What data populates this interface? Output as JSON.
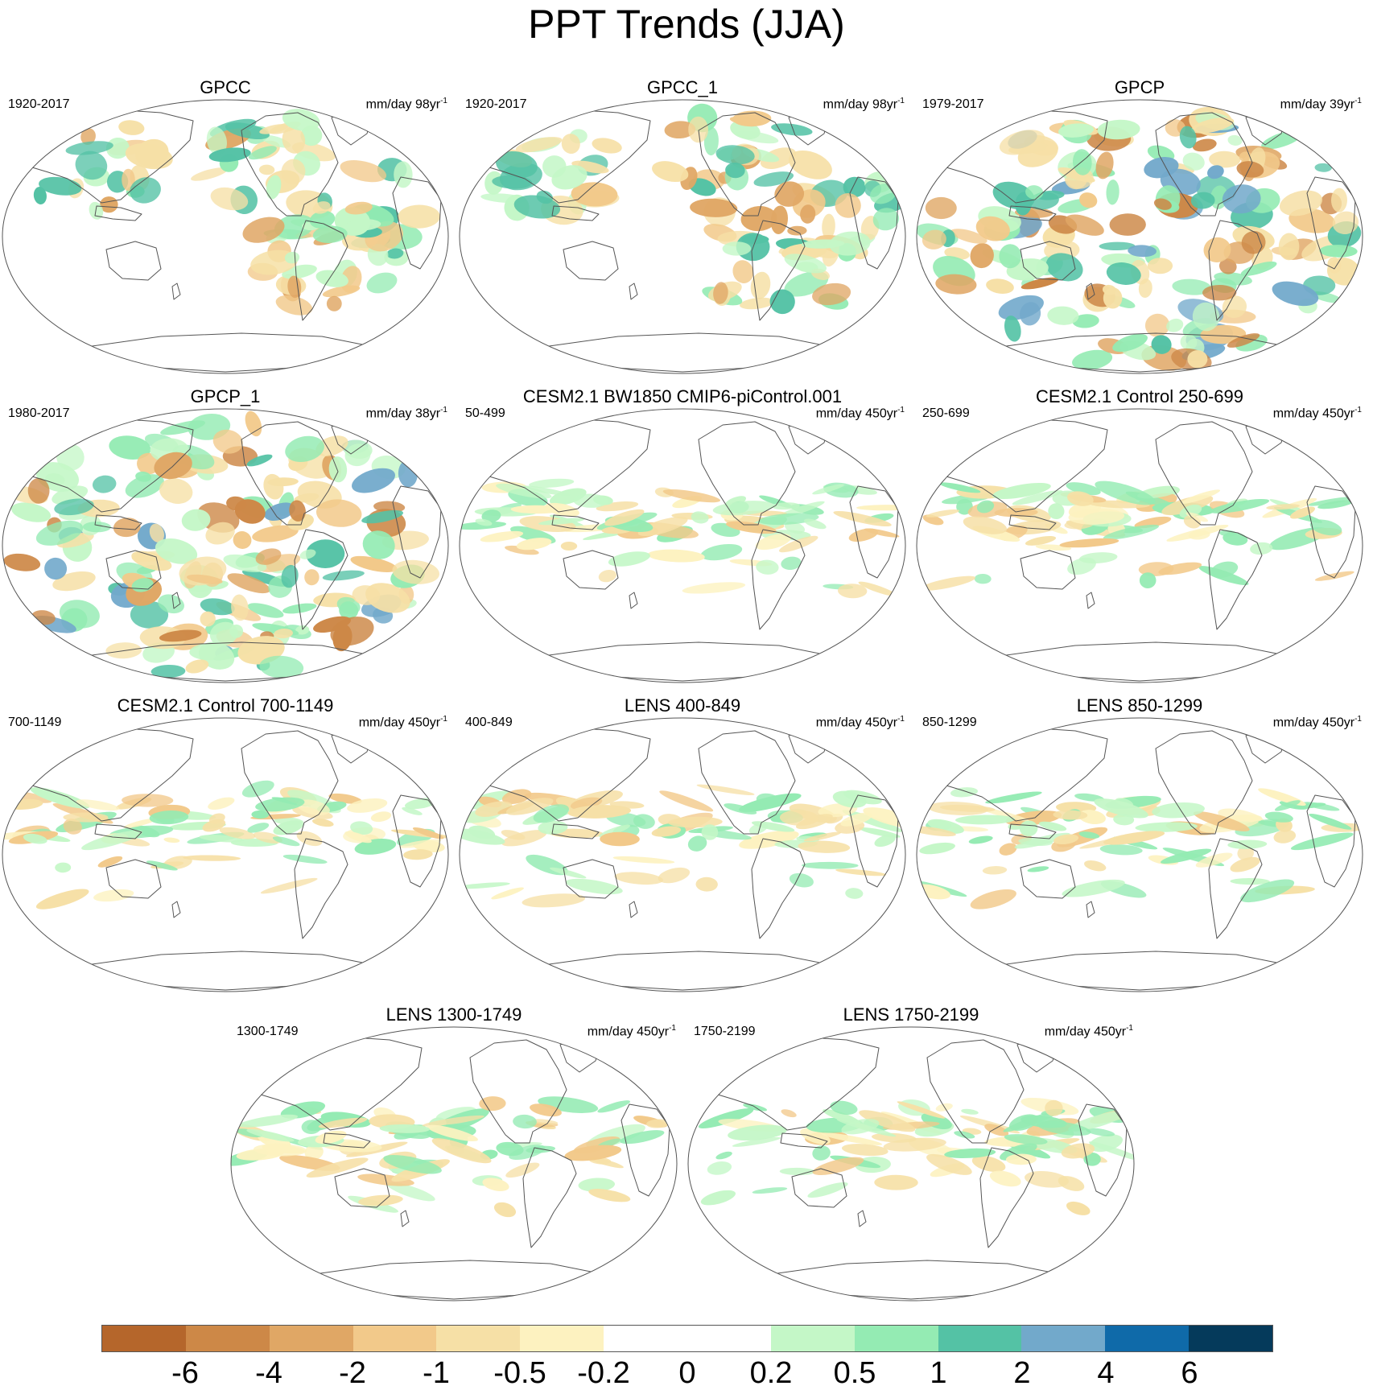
{
  "title": "PPT Trends (JJA)",
  "panels": [
    {
      "title": "GPCC",
      "period": "1920-2017",
      "units": "mm/day 98yr",
      "units_sup": "-1",
      "variant": "obs-land"
    },
    {
      "title": "GPCC_1",
      "period": "1920-2017",
      "units": "mm/day 98yr",
      "units_sup": "-1",
      "variant": "obs-land"
    },
    {
      "title": "GPCP",
      "period": "1979-2017",
      "units": "mm/day 39yr",
      "units_sup": "-1",
      "variant": "obs-global"
    },
    {
      "title": "GPCP_1",
      "period": "1980-2017",
      "units": "mm/day 38yr",
      "units_sup": "-1",
      "variant": "obs-global"
    },
    {
      "title": "CESM2.1 BW1850 CMIP6-piControl.001",
      "period": "50-499",
      "units": "mm/day 450yr",
      "units_sup": "-1",
      "variant": "model"
    },
    {
      "title": "CESM2.1 Control 250-699",
      "period": "250-699",
      "units": "mm/day 450yr",
      "units_sup": "-1",
      "variant": "model"
    },
    {
      "title": "CESM2.1 Control 700-1149",
      "period": "700-1149",
      "units": "mm/day 450yr",
      "units_sup": "-1",
      "variant": "model"
    },
    {
      "title": "LENS 400-849",
      "period": "400-849",
      "units": "mm/day 450yr",
      "units_sup": "-1",
      "variant": "model"
    },
    {
      "title": "LENS 850-1299",
      "period": "850-1299",
      "units": "mm/day 450yr",
      "units_sup": "-1",
      "variant": "model"
    },
    {
      "title": "LENS 1300-1749",
      "period": "1300-1749",
      "units": "mm/day 450yr",
      "units_sup": "-1",
      "variant": "model"
    },
    {
      "title": "LENS 1750-2199",
      "period": "1750-2199",
      "units": "mm/day 450yr",
      "units_sup": "-1",
      "variant": "model"
    }
  ],
  "colorbar": {
    "colors": [
      "#b5662b",
      "#cd8847",
      "#e0a765",
      "#f2c98a",
      "#f6e0a6",
      "#fdf2c0",
      "#ffffff",
      "#ffffff",
      "#c4f7c7",
      "#94ebb3",
      "#54c2a5",
      "#72a9cb",
      "#0f6aa9",
      "#053a5b"
    ],
    "labels": [
      "-6",
      "-4",
      "-2",
      "-1",
      "-0.5",
      "-0.2",
      "0",
      "0.2",
      "0.5",
      "1",
      "2",
      "4",
      "6"
    ]
  }
}
